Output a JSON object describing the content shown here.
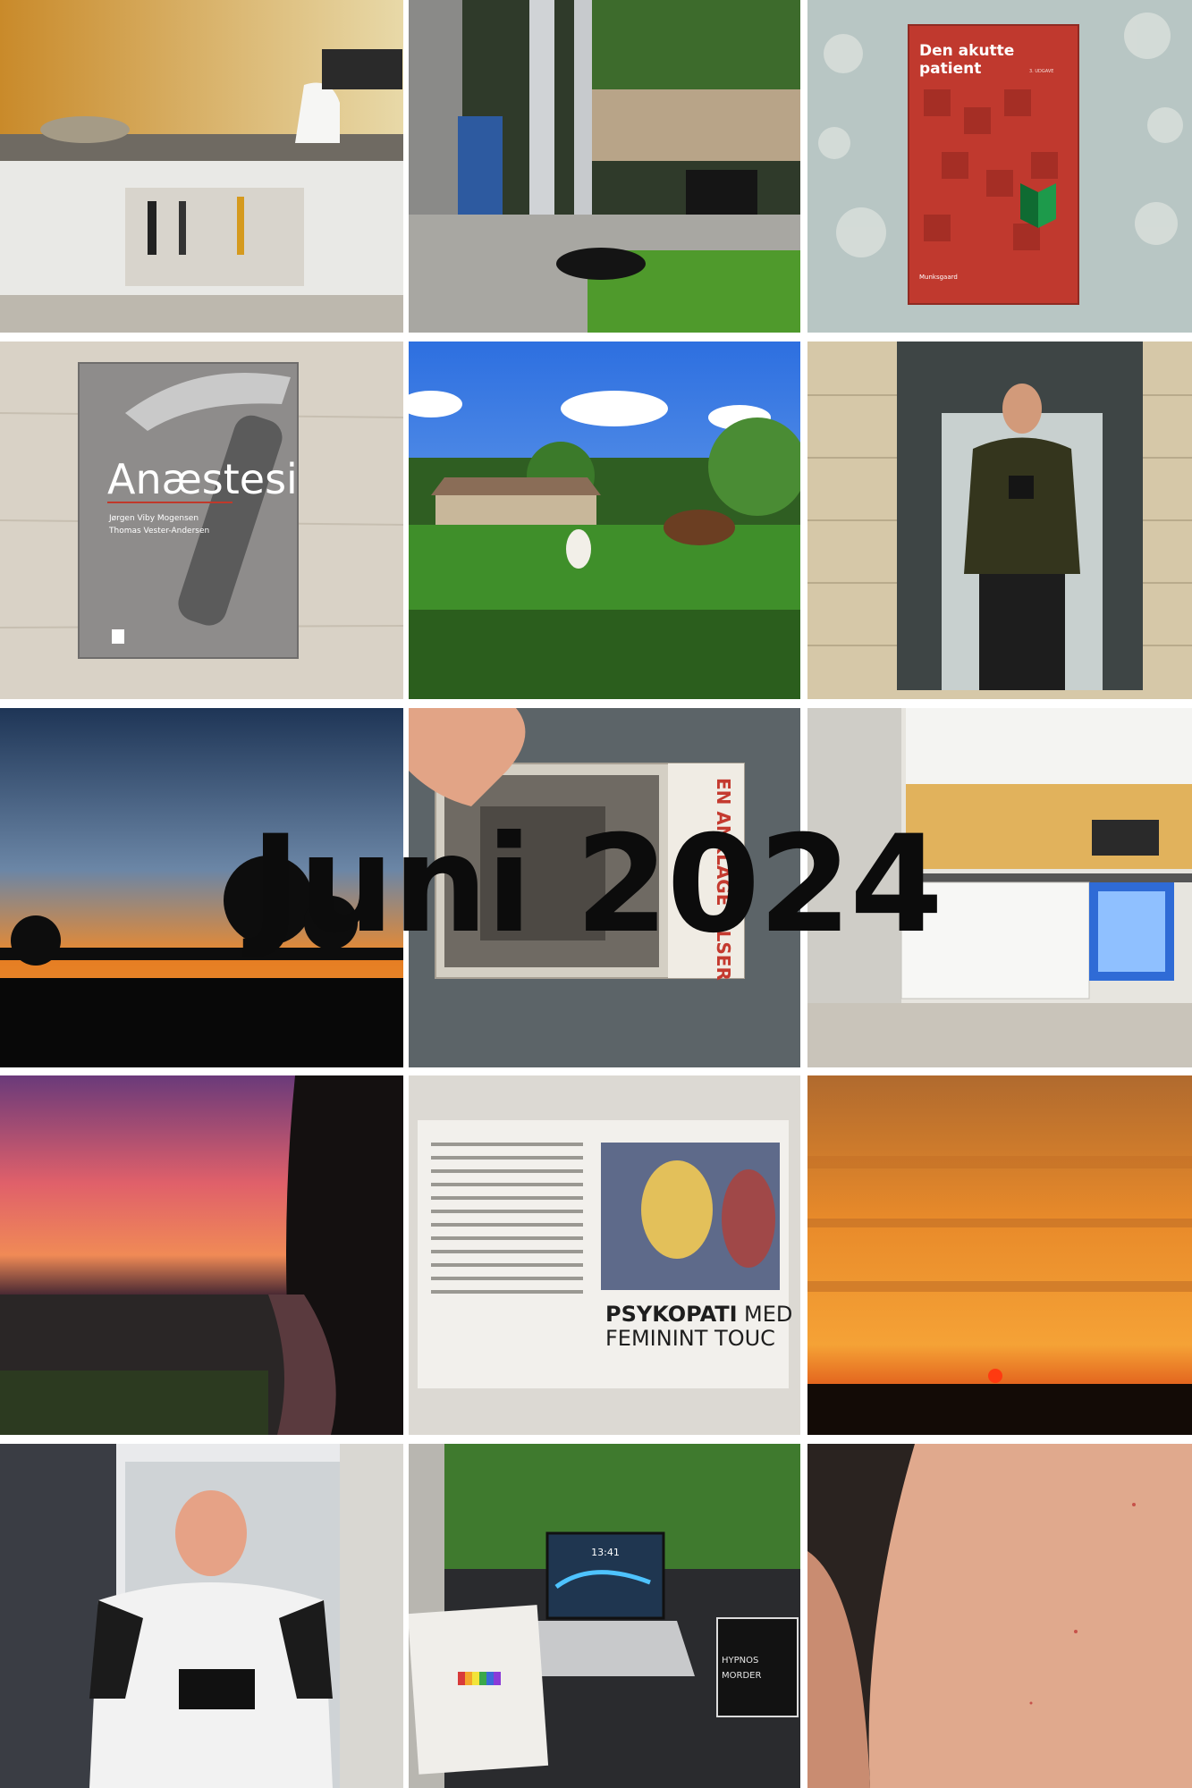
{
  "overlay": {
    "title": "Juni 2024"
  },
  "photos": {
    "book_red": {
      "title_line1": "Den akutte",
      "title_line2": "patient",
      "edition": "3. UDGAVE",
      "publisher": "Munksgaard"
    },
    "book_gray": {
      "title": "Anæstesi",
      "author1": "Jørgen Viby Mogensen",
      "author2": "Thomas Vester-Andersen"
    },
    "book_handheld": {
      "title": "EN ANKLAGE",
      "title_end": "ELSER"
    },
    "newspaper": {
      "headline_bold": "PSYKOPATI",
      "headline_rest": "MED",
      "subline": "FEMININT TOUC"
    },
    "laptop": {
      "clock": "13:41"
    },
    "desk_book": {
      "title": "HYPNOS",
      "subtitle": "MORDER"
    }
  }
}
